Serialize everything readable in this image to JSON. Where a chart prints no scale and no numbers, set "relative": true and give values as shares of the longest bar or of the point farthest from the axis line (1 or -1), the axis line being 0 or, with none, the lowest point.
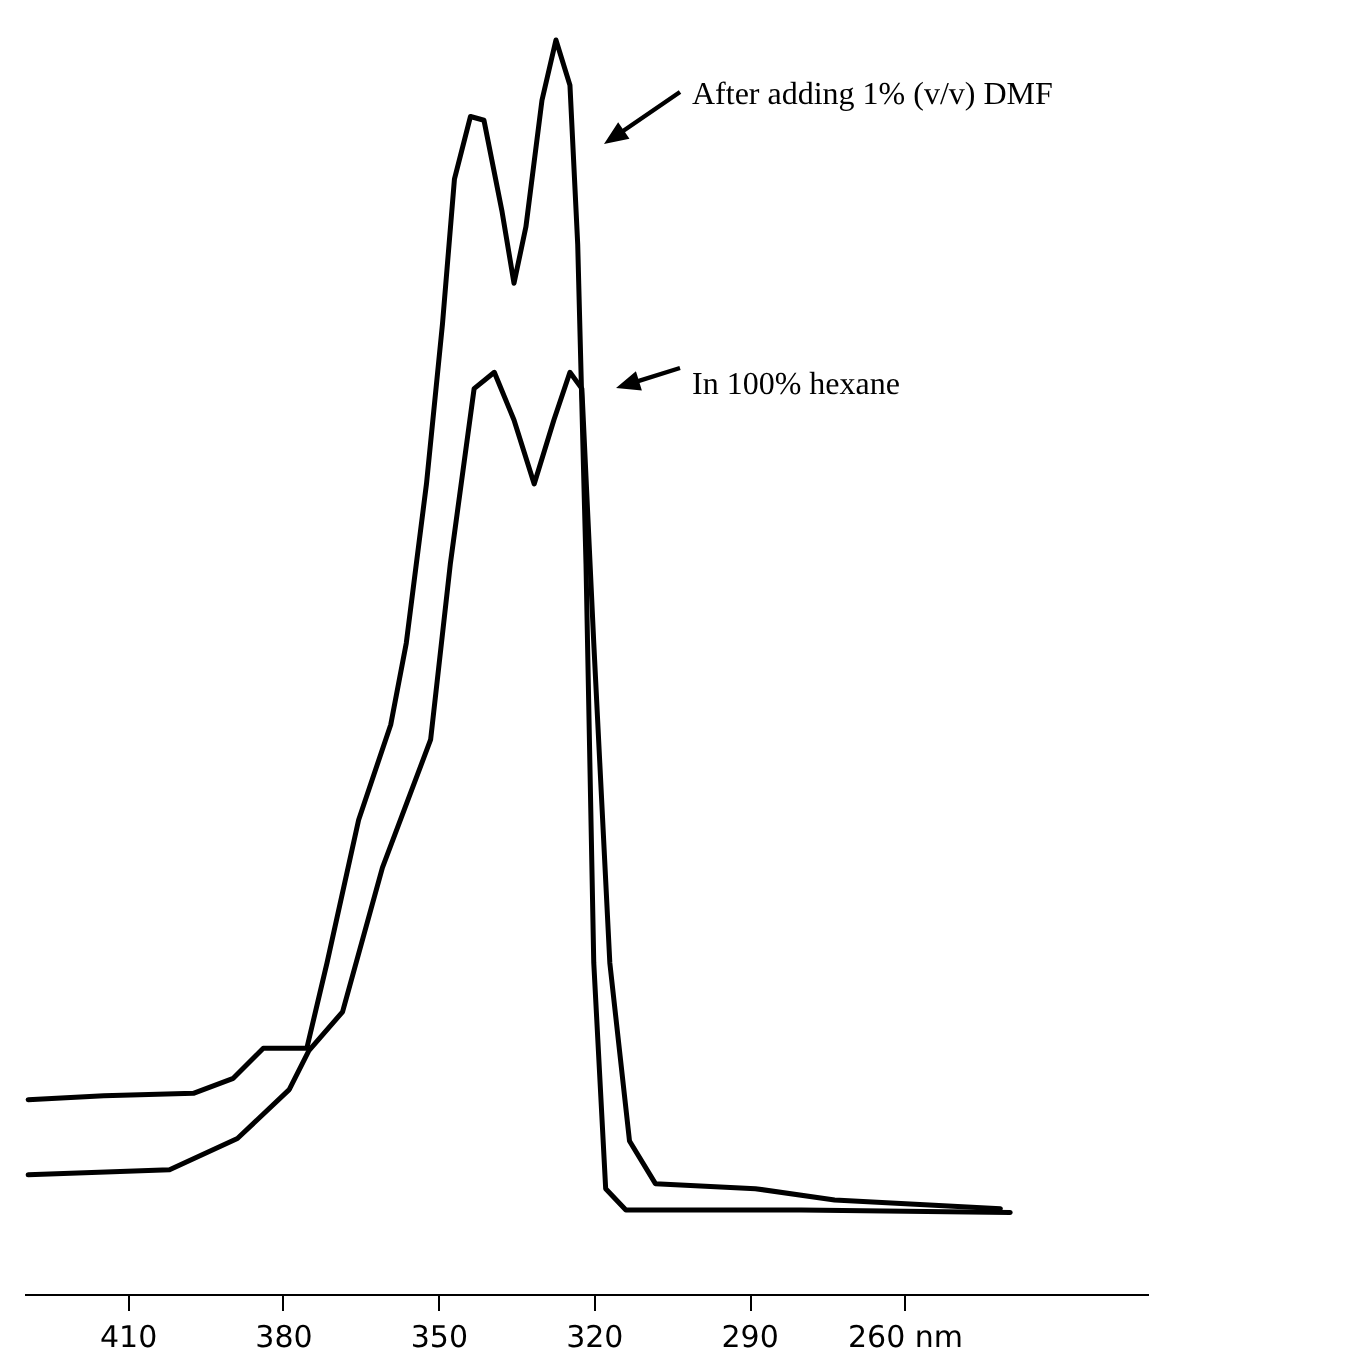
{
  "chart_data": {
    "type": "line",
    "relative": true,
    "xlim": [
      430,
      213
    ],
    "xticks": [
      410,
      380,
      350,
      320,
      290,
      {
        "value": 260,
        "label": "260 nm"
      }
    ],
    "grid": false,
    "legend": "top right",
    "line_style": "solid",
    "marker": "none",
    "series": [
      {
        "name": "After adding  1% (v/v) DMF",
        "color": "#000000",
        "x": [
          429.2,
          414.6,
          397.3,
          389.6,
          383.8,
          375.4,
          371.5,
          365.4,
          359.2,
          356.2,
          352.3,
          349.2,
          346.9,
          343.8,
          341.2,
          337.7,
          335.4,
          333.1,
          330.0,
          327.3,
          324.6,
          323.1,
          321.5,
          320.0,
          317.7,
          313.8,
          280.0,
          239.6
        ],
        "values": [
          0.155,
          0.158,
          0.16,
          0.172,
          0.196,
          0.196,
          0.264,
          0.378,
          0.454,
          0.519,
          0.646,
          0.774,
          0.889,
          0.939,
          0.936,
          0.863,
          0.806,
          0.851,
          0.952,
          1.0,
          0.964,
          0.837,
          0.582,
          0.264,
          0.084,
          0.067,
          0.067,
          0.065
        ]
      },
      {
        "name": "In 100% hexane",
        "color": "#000000",
        "x": [
          429.2,
          401.9,
          388.8,
          378.8,
          375.0,
          368.5,
          360.8,
          351.5,
          347.7,
          343.1,
          339.2,
          335.4,
          331.5,
          327.7,
          324.6,
          322.3,
          320.0,
          316.9,
          313.1,
          308.1,
          288.8,
          273.5,
          241.5
        ],
        "values": [
          0.095,
          0.099,
          0.124,
          0.163,
          0.194,
          0.225,
          0.34,
          0.442,
          0.582,
          0.722,
          0.735,
          0.697,
          0.646,
          0.697,
          0.735,
          0.722,
          0.519,
          0.264,
          0.122,
          0.088,
          0.084,
          0.075,
          0.068
        ]
      }
    ]
  }
}
